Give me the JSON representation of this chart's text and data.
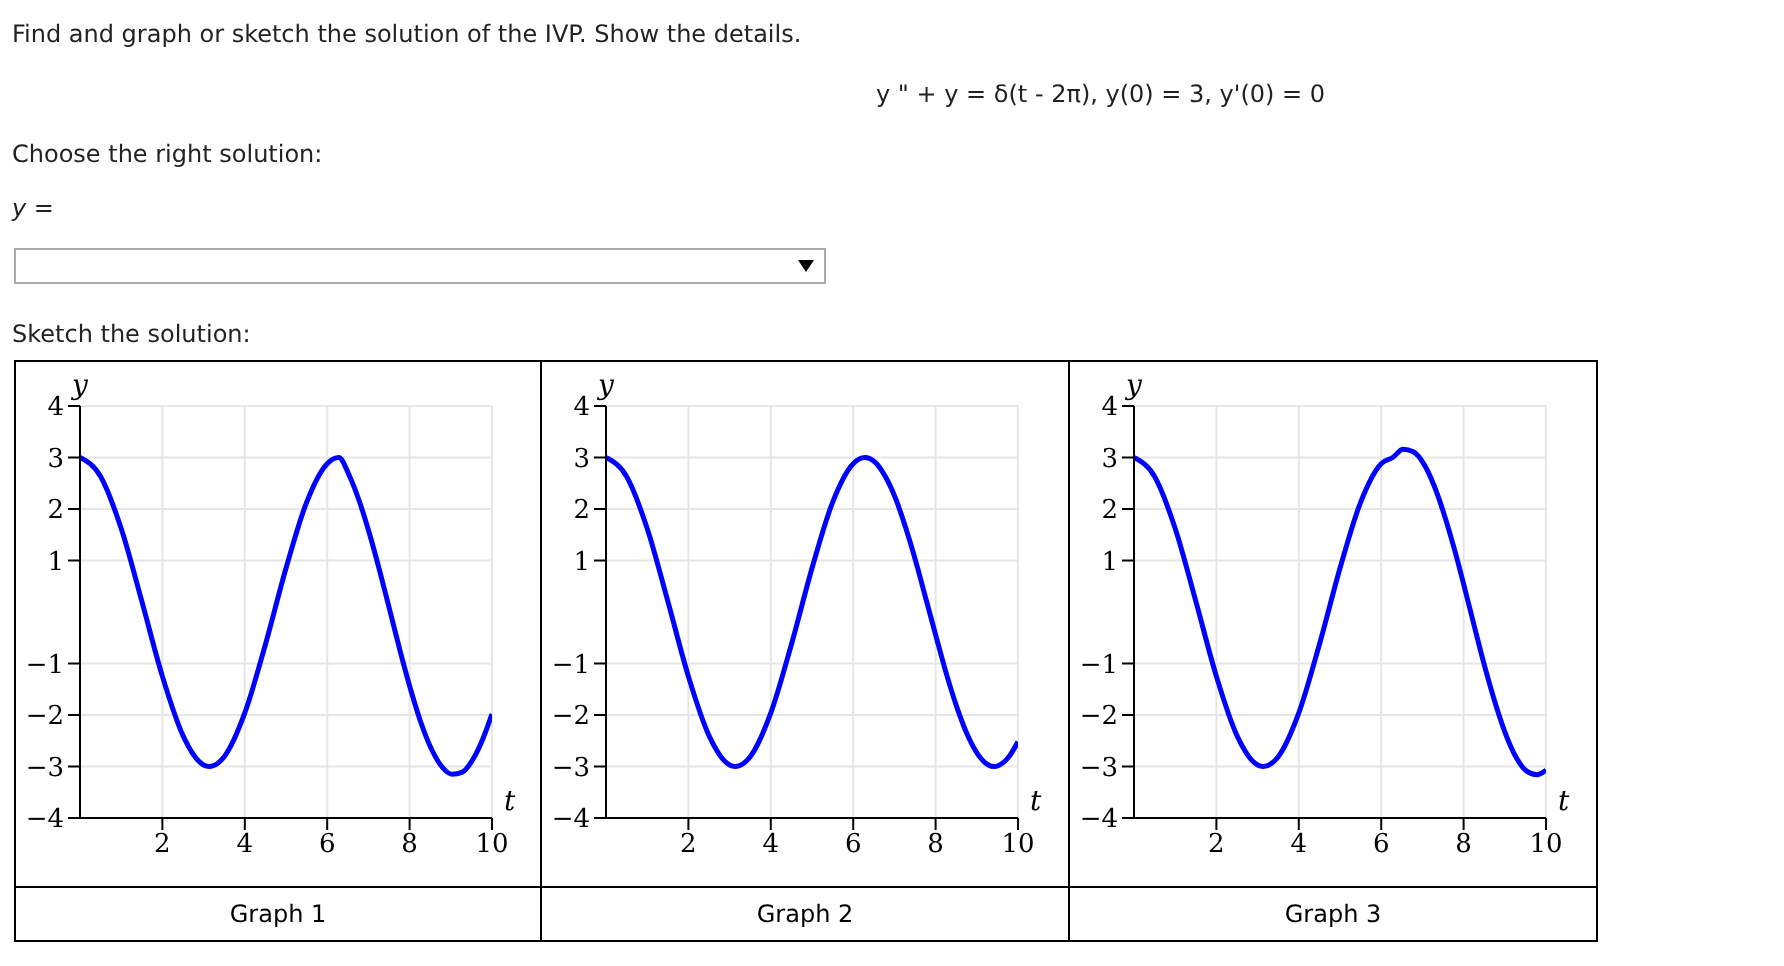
{
  "chart_data": [
    {
      "type": "line",
      "title": "Find and graph or sketch the solution of the IVP. Show the details.",
      "annotations": [
        "y \" + y = δ(t - 2π), y(0) = 3, y'(0) = 0",
        "Choose the right solution:",
        "y =",
        "Sketch the solution:",
        "Graph 1"
      ],
      "xlabel": "t",
      "ylabel": "y",
      "xlim": [
        0,
        10
      ],
      "ylim": [
        -4,
        4
      ],
      "xticks": [
        2,
        4,
        6,
        8,
        10
      ],
      "yticks": [
        -4,
        -3,
        -2,
        -1,
        1,
        2,
        3,
        4
      ],
      "grid": true,
      "marker": "none",
      "line_style": "solid",
      "series": [
        {
          "color": "#0000ff",
          "x": [
            0,
            0.5,
            1,
            1.5,
            2,
            2.5,
            3,
            3.14,
            3.5,
            4,
            4.5,
            5,
            5.5,
            6,
            6.28,
            6.53,
            6.78,
            7.03,
            7.28,
            7.53,
            7.78,
            8.03,
            8.28,
            8.53,
            8.78,
            9.03,
            9.28,
            9.53,
            9.78,
            10
          ],
          "values": [
            3,
            2.63,
            1.62,
            0.21,
            -1.25,
            -2.4,
            -2.97,
            -3,
            -2.81,
            -1.96,
            -0.63,
            0.85,
            2.13,
            2.88,
            3,
            2.66,
            2.15,
            1.51,
            0.78,
            0,
            -0.79,
            -1.52,
            -2.16,
            -2.66,
            -3,
            -3.15,
            -3.11,
            -2.87,
            -2.46,
            -1.98
          ]
        }
      ]
    },
    {
      "type": "line",
      "annotations": [
        "Graph 2"
      ],
      "xlabel": "t",
      "ylabel": "y",
      "xlim": [
        0,
        10
      ],
      "ylim": [
        -4,
        4
      ],
      "xticks": [
        2,
        4,
        6,
        8,
        10
      ],
      "yticks": [
        -4,
        -3,
        -2,
        -1,
        1,
        2,
        3,
        4
      ],
      "grid": true,
      "marker": "none",
      "line_style": "solid",
      "series": [
        {
          "color": "#0000ff",
          "x": [
            0,
            0.5,
            1,
            1.5,
            2,
            2.5,
            3,
            3.14,
            3.5,
            4,
            4.5,
            5,
            5.5,
            6,
            6.28,
            6.53,
            6.78,
            7.03,
            7.28,
            7.53,
            7.78,
            8.03,
            8.28,
            8.53,
            8.78,
            9.03,
            9.28,
            9.42,
            9.53,
            9.78,
            10
          ],
          "values": [
            3,
            2.63,
            1.62,
            0.21,
            -1.25,
            -2.4,
            -2.97,
            -3,
            -2.81,
            -1.96,
            -0.63,
            0.85,
            2.13,
            2.88,
            3,
            2.91,
            2.63,
            2.2,
            1.62,
            0.95,
            0.21,
            -0.53,
            -1.25,
            -1.88,
            -2.4,
            -2.77,
            -2.97,
            -3,
            -2.98,
            -2.81,
            -2.52
          ]
        }
      ]
    },
    {
      "type": "line",
      "annotations": [
        "Graph 3"
      ],
      "xlabel": "t",
      "ylabel": "y",
      "xlim": [
        0,
        10
      ],
      "ylim": [
        -4,
        4
      ],
      "xticks": [
        2,
        4,
        6,
        8,
        10
      ],
      "yticks": [
        -4,
        -3,
        -2,
        -1,
        1,
        2,
        3,
        4
      ],
      "grid": true,
      "marker": "none",
      "line_style": "solid",
      "series": [
        {
          "color": "#0000ff",
          "x": [
            0,
            0.5,
            1,
            1.5,
            2,
            2.5,
            3,
            3.14,
            3.5,
            4,
            4.5,
            5,
            5.5,
            6,
            6.28,
            6.53,
            6.78,
            7.03,
            7.28,
            7.53,
            7.78,
            8.03,
            8.28,
            8.53,
            8.78,
            9.03,
            9.28,
            9.53,
            9.78,
            10
          ],
          "values": [
            3,
            2.63,
            1.62,
            0.21,
            -1.25,
            -2.4,
            -2.97,
            -3,
            -2.81,
            -1.96,
            -0.63,
            0.85,
            2.13,
            2.88,
            3,
            3.16,
            3.11,
            2.88,
            2.46,
            1.89,
            1.21,
            0.45,
            -0.34,
            -1.11,
            -1.8,
            -2.39,
            -2.83,
            -3.09,
            -3.16,
            -3.07
          ]
        }
      ]
    }
  ]
}
